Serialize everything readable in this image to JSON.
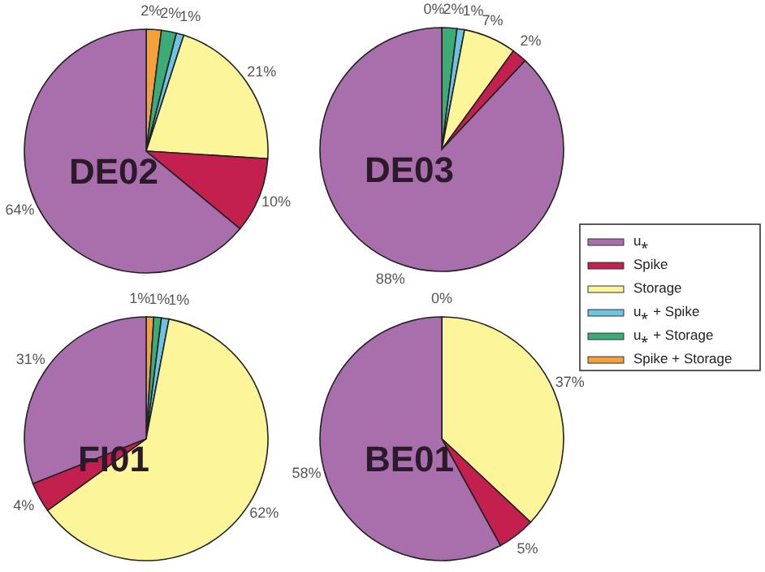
{
  "chart_data": [
    {
      "type": "pie",
      "title": "DE02",
      "categories": [
        "Spike + Storage",
        "u⁎ + Storage",
        "u⁎ + Spike",
        "Storage",
        "Spike",
        "u⁎"
      ],
      "values": [
        2,
        2,
        1,
        21,
        10,
        64
      ],
      "value_labels": [
        "2%",
        "2%",
        "1%",
        "21%",
        "10%",
        "64%"
      ],
      "colors": [
        "#f5a03b",
        "#3cab76",
        "#6ec3e3",
        "#fdf59a",
        "#c4204f",
        "#a86fac"
      ],
      "legend": "right"
    },
    {
      "type": "pie",
      "title": "DE03",
      "categories": [
        null,
        null,
        null,
        null,
        null,
        null
      ],
      "values": [
        0,
        2,
        1,
        7,
        2,
        88
      ],
      "value_labels": [
        "0%",
        "2%",
        "1%",
        "7%",
        "2%",
        "88%"
      ],
      "colors": [
        "#f5a03b",
        "#3cab76",
        "#6ec3e3",
        "#fdf59a",
        "#c4204f",
        "#a86fac"
      ]
    },
    {
      "type": "pie",
      "title": "FI01",
      "categories": [
        null,
        null,
        null,
        null,
        null,
        null
      ],
      "values": [
        1,
        1,
        1,
        62,
        4,
        31
      ],
      "value_labels": [
        "1%",
        "1%",
        "1%",
        "62%",
        "4%",
        "31%"
      ],
      "colors": [
        "#f5a03b",
        "#3cab76",
        "#6ec3e3",
        "#fdf59a",
        "#c4204f",
        "#a86fac"
      ]
    },
    {
      "type": "pie",
      "title": "BE01",
      "categories": [
        null,
        null,
        null,
        null,
        null,
        null
      ],
      "values": [
        0,
        0,
        0,
        37,
        5,
        58
      ],
      "value_labels": [
        null,
        "0%",
        null,
        "37%",
        "5%",
        "58%"
      ],
      "colors": [
        "#f5a03b",
        "#3cab76",
        "#6ec3e3",
        "#fdf59a",
        "#c4204f",
        "#a86fac"
      ]
    }
  ]
}
